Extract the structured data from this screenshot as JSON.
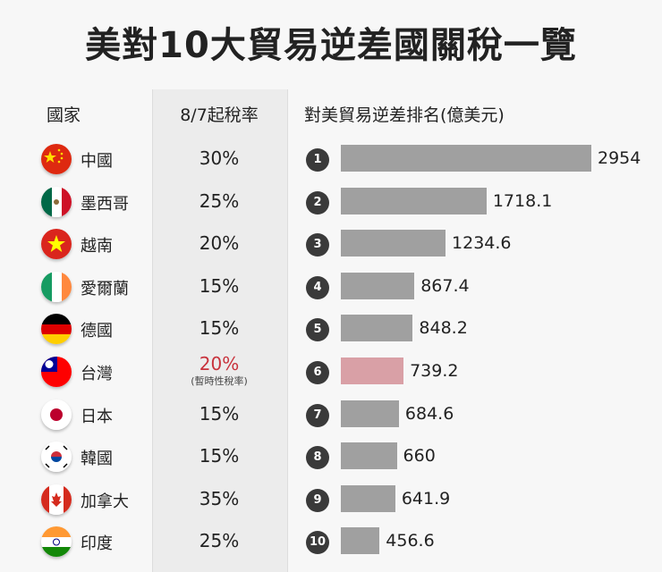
{
  "chart_data": {
    "type": "bar",
    "title": "美對10大貿易逆差國關稅一覽",
    "columns": [
      "國家",
      "8/7起稅率",
      "對美貿易逆差排名(億美元)"
    ],
    "colors": {
      "bar": "#a0a0a0",
      "highlight_bar": "#d9a0a6",
      "highlight_text": "#c8323c"
    },
    "rows": [
      {
        "rank": "1",
        "country": "中國",
        "flag": "china-flag",
        "rate": "30%",
        "value": 2954,
        "label": "2954"
      },
      {
        "rank": "2",
        "country": "墨西哥",
        "flag": "mexico-flag",
        "rate": "25%",
        "value": 1718.1,
        "label": "1718.1"
      },
      {
        "rank": "3",
        "country": "越南",
        "flag": "vietnam-flag",
        "rate": "20%",
        "value": 1234.6,
        "label": "1234.6"
      },
      {
        "rank": "4",
        "country": "愛爾蘭",
        "flag": "ireland-flag",
        "rate": "15%",
        "value": 867.4,
        "label": "867.4"
      },
      {
        "rank": "5",
        "country": "德國",
        "flag": "germany-flag",
        "rate": "15%",
        "value": 848.2,
        "label": "848.2"
      },
      {
        "rank": "6",
        "country": "台灣",
        "flag": "taiwan-flag",
        "rate": "20%",
        "note": "(暫時性稅率)",
        "highlight": true,
        "value": 739.2,
        "label": "739.2"
      },
      {
        "rank": "7",
        "country": "日本",
        "flag": "japan-flag",
        "rate": "15%",
        "value": 684.6,
        "label": "684.6"
      },
      {
        "rank": "8",
        "country": "韓國",
        "flag": "korea-flag",
        "rate": "15%",
        "value": 660,
        "label": "660"
      },
      {
        "rank": "9",
        "country": "加拿大",
        "flag": "canada-flag",
        "rate": "35%",
        "value": 641.9,
        "label": "641.9"
      },
      {
        "rank": "10",
        "country": "印度",
        "flag": "india-flag",
        "rate": "25%",
        "value": 456.6,
        "label": "456.6"
      }
    ]
  }
}
